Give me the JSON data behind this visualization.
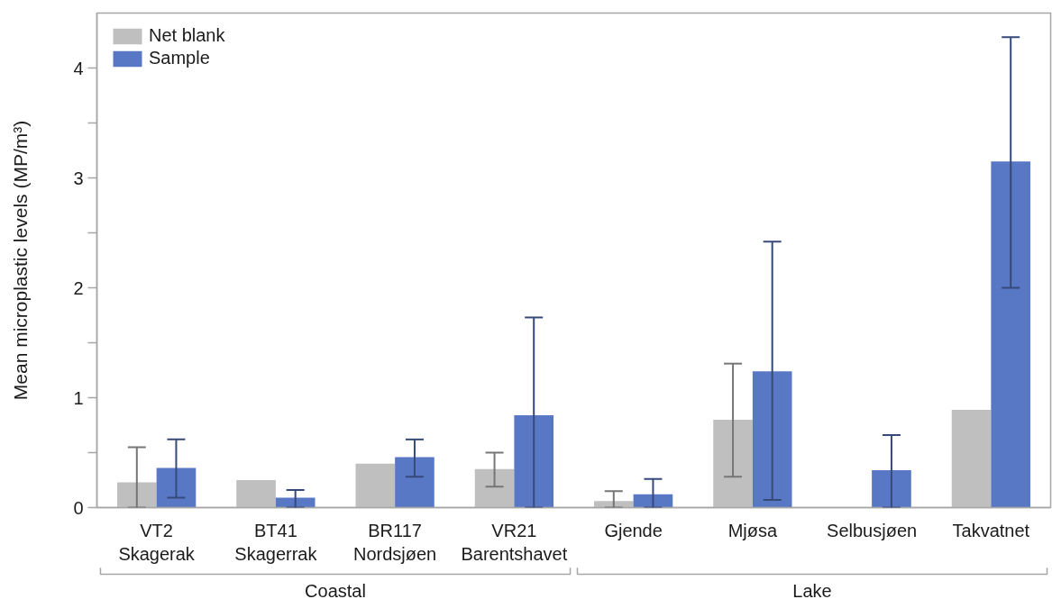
{
  "chart_data": {
    "type": "bar",
    "categories": [
      "VT2\nSkagerak",
      "BT41\nSkagerrak",
      "BR117\nNordsjøen",
      "VR21\nBarentshavet",
      "Gjende",
      "Mjøsa",
      "Selbusjøen",
      "Takvatnet"
    ],
    "series": [
      {
        "name": "Net blank",
        "color": "#bfbfbf",
        "values": [
          0.23,
          0.25,
          0.4,
          0.35,
          0.06,
          0.8,
          null,
          0.89
        ],
        "errors": [
          [
            0,
            0.55
          ],
          null,
          null,
          [
            0.19,
            0.5
          ],
          [
            0,
            0.15
          ],
          [
            0.28,
            1.31
          ],
          null,
          null
        ]
      },
      {
        "name": "Sample",
        "color": "#5878c6",
        "values": [
          0.36,
          0.09,
          0.46,
          0.84,
          0.12,
          1.24,
          0.34,
          3.15
        ],
        "errors": [
          [
            0.09,
            0.62
          ],
          [
            0,
            0.16
          ],
          [
            0.28,
            0.62
          ],
          [
            0,
            1.73
          ],
          [
            0,
            0.26
          ],
          [
            0.07,
            2.42
          ],
          [
            0,
            0.66
          ],
          [
            2.0,
            4.28
          ]
        ]
      }
    ],
    "ylabel": "Mean microplastic levels (MP/m³)",
    "ylim": [
      0,
      4.5
    ],
    "yticks": [
      0,
      {
        "value": 0.5,
        "label": null
      },
      1,
      {
        "value": 1.5,
        "label": null
      },
      2,
      {
        "value": 2.5,
        "label": null
      },
      3,
      {
        "value": 3.5,
        "label": null
      },
      4
    ],
    "legend": "top left",
    "annotations": [
      "Coastal",
      "Lake"
    ]
  }
}
